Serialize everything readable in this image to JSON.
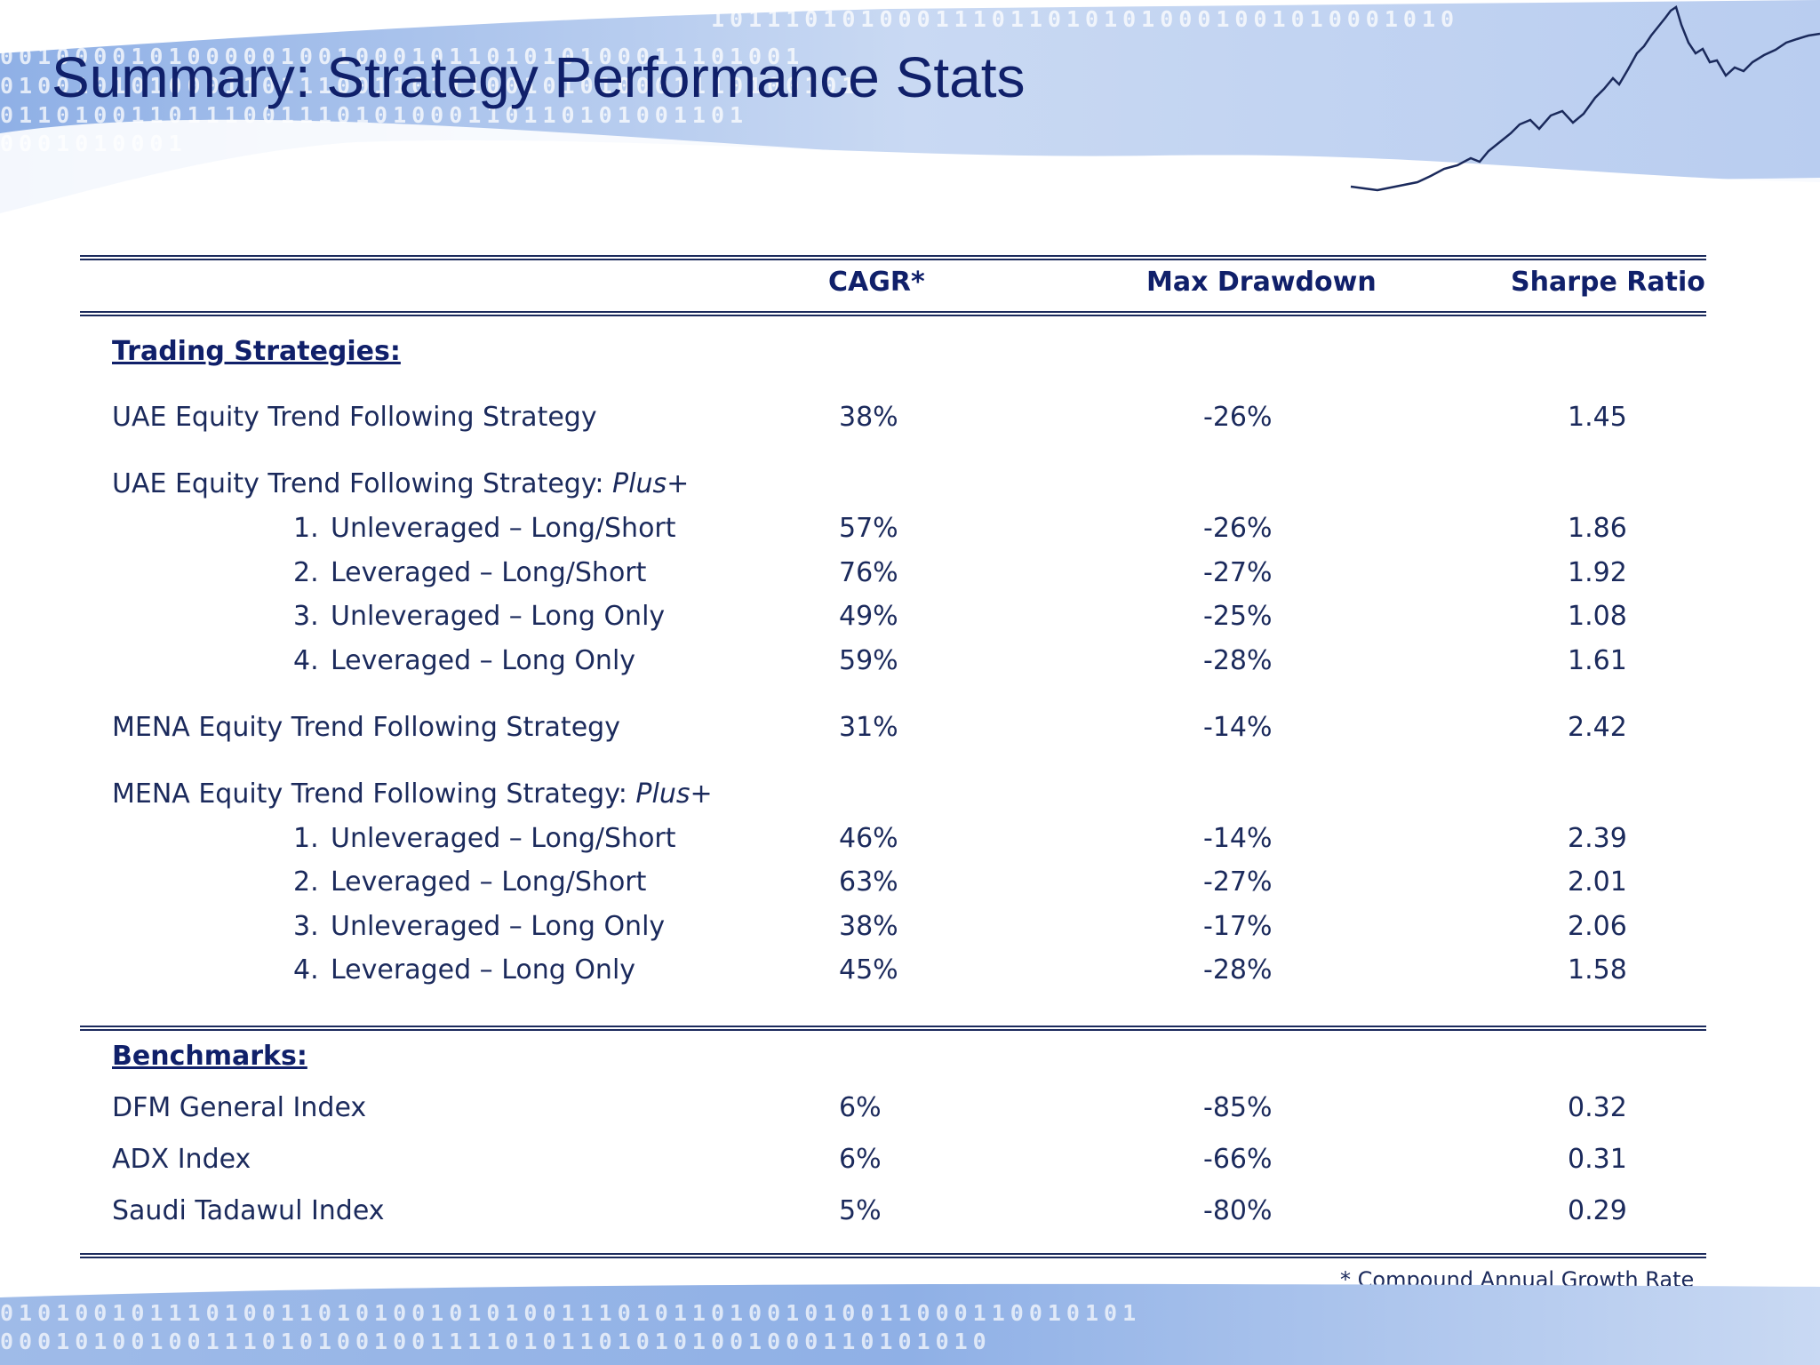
{
  "slide": {
    "title": "Summary: Strategy Performance Stats",
    "footnote": "* Compound Annual Growth Rate"
  },
  "table": {
    "headers": {
      "cagr": "CAGR*",
      "max_drawdown": "Max Drawdown",
      "sharpe": "Sharpe Ratio"
    },
    "trading_heading": "Trading Strategies:",
    "uae_trend": {
      "label": "UAE Equity Trend Following Strategy",
      "cagr": "38%",
      "dd": "-26%",
      "sharpe": "1.45"
    },
    "uae_plus": {
      "label": "UAE Equity Trend Following Strategy: ",
      "suffix": "Plus+",
      "rows": [
        {
          "num": "1.",
          "label": "Unleveraged – Long/Short",
          "cagr": "57%",
          "dd": "-26%",
          "sharpe": "1.86"
        },
        {
          "num": "2.",
          "label": "Leveraged – Long/Short",
          "cagr": "76%",
          "dd": "-27%",
          "sharpe": "1.92"
        },
        {
          "num": "3.",
          "label": "Unleveraged – Long Only",
          "cagr": "49%",
          "dd": "-25%",
          "sharpe": "1.08"
        },
        {
          "num": "4.",
          "label": "Leveraged – Long Only",
          "cagr": "59%",
          "dd": "-28%",
          "sharpe": "1.61"
        }
      ]
    },
    "mena_trend": {
      "label": "MENA Equity Trend Following Strategy",
      "cagr": "31%",
      "dd": "-14%",
      "sharpe": "2.42"
    },
    "mena_plus": {
      "label": "MENA Equity Trend Following Strategy: ",
      "suffix": "Plus+",
      "rows": [
        {
          "num": "1.",
          "label": "Unleveraged – Long/Short",
          "cagr": "46%",
          "dd": "-14%",
          "sharpe": "2.39"
        },
        {
          "num": "2.",
          "label": "Leveraged – Long/Short",
          "cagr": "63%",
          "dd": "-27%",
          "sharpe": "2.01"
        },
        {
          "num": "3.",
          "label": "Unleveraged – Long Only",
          "cagr": "38%",
          "dd": "-17%",
          "sharpe": "2.06"
        },
        {
          "num": "4.",
          "label": "Leveraged – Long Only",
          "cagr": "45%",
          "dd": "-28%",
          "sharpe": "1.58"
        }
      ]
    },
    "benchmarks_heading": "Benchmarks:",
    "benchmarks": [
      {
        "label": "DFM General Index",
        "cagr": "6%",
        "dd": "-85%",
        "sharpe": "0.32"
      },
      {
        "label": "ADX Index",
        "cagr": "6%",
        "dd": "-66%",
        "sharpe": "0.31"
      },
      {
        "label": "Saudi Tadawul Index",
        "cagr": "5%",
        "dd": "-80%",
        "sharpe": "0.29"
      }
    ]
  }
}
